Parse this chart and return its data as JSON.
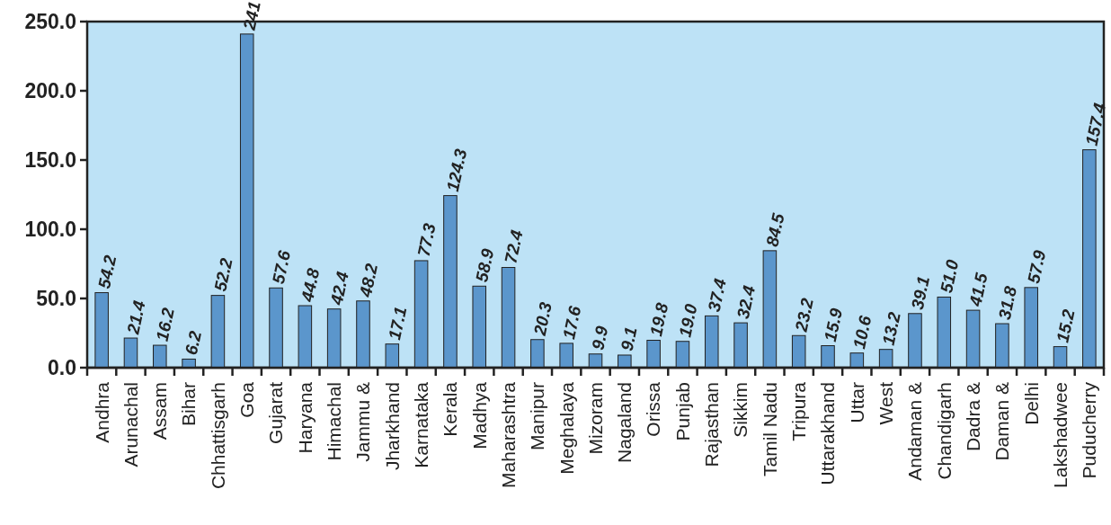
{
  "chart_data": {
    "type": "bar",
    "categories": [
      "Andhra",
      "Arunachal",
      "Assam",
      "Bihar",
      "Chhattisgarh",
      "Goa",
      "Gujarat",
      "Haryana",
      "Himachal",
      "Jammu &",
      "Jharkhand",
      "Karnataka",
      "Kerala",
      "Madhya",
      "Maharashtra",
      "Manipur",
      "Meghalaya",
      "Mizoram",
      "Nagaland",
      "Orissa",
      "Punjab",
      "Rajasthan",
      "Sikkim",
      "Tamil Nadu",
      "Tripura",
      "Uttarakhand",
      "Uttar",
      "West",
      "Andaman &",
      "Chandigarh",
      "Dadra &",
      "Daman &",
      "Delhi",
      "Lakshadwee",
      "Puducherry"
    ],
    "values": [
      54.2,
      21.4,
      16.2,
      6.2,
      52.2,
      241,
      57.6,
      44.8,
      42.4,
      48.2,
      17.1,
      77.3,
      124.3,
      58.9,
      72.4,
      20.3,
      17.6,
      9.9,
      9.1,
      19.8,
      19.0,
      37.4,
      32.4,
      84.5,
      23.2,
      15.9,
      10.6,
      13.2,
      39.1,
      51.0,
      41.5,
      31.8,
      57.9,
      15.2,
      157.4
    ],
    "value_labels": [
      "54.2",
      "21.4",
      "16.2",
      "6.2",
      "52.2",
      "241",
      "57.6",
      "44.8",
      "42.4",
      "48.2",
      "17.1",
      "77.3",
      "124.3",
      "58.9",
      "72.4",
      "20.3",
      "17.6",
      "9.9",
      "9.1",
      "19.8",
      "19.0",
      "37.4",
      "32.4",
      "84.5",
      "23.2",
      "15.9",
      "10.6",
      "13.2",
      "39.1",
      "51.0",
      "41.5",
      "31.8",
      "57.9",
      "15.2",
      "157.4"
    ],
    "color": "#5b96cc",
    "ylim": [
      0,
      250
    ],
    "yticks": [
      {
        "value": 0,
        "label": "0.0"
      },
      {
        "value": 50,
        "label": "50.0"
      },
      {
        "value": 100,
        "label": "100.0"
      },
      {
        "value": 150,
        "label": "150.0"
      },
      {
        "value": 200,
        "label": "200.0"
      },
      {
        "value": 250,
        "label": "250.0"
      }
    ],
    "grid": false
  }
}
